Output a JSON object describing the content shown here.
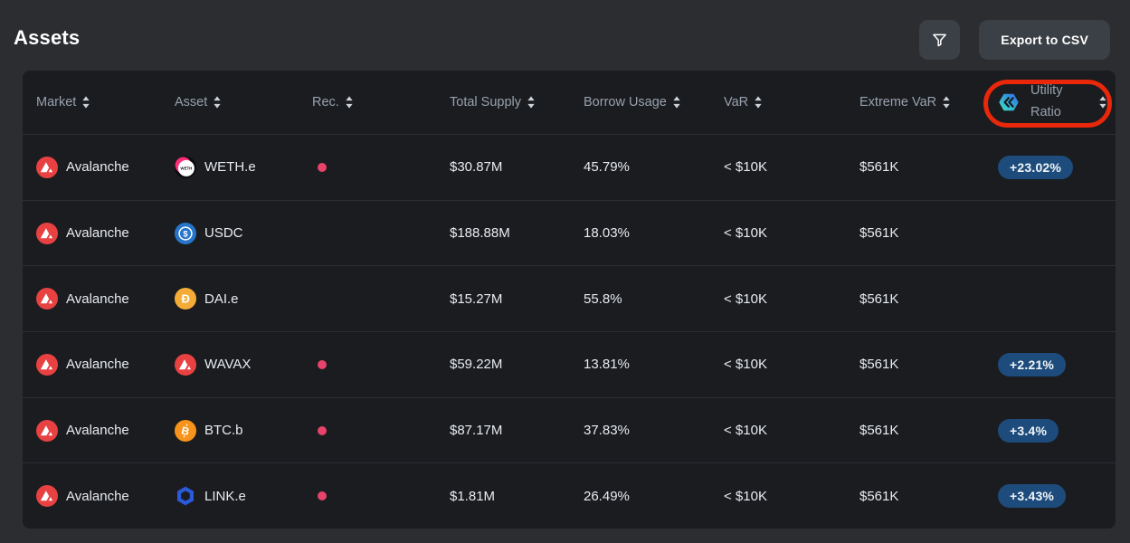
{
  "page": {
    "title": "Assets"
  },
  "toolbar": {
    "export_label": "Export to CSV",
    "filter_icon": "funnel-icon"
  },
  "colors": {
    "page_bg": "#2b2d31",
    "panel_bg": "#1a1c20",
    "button_bg": "#3b4046",
    "header_text": "#98a1ad",
    "row_text": "#e8ebef",
    "badge_bg": "#1d4c7c",
    "rec_dot": "#e8436a",
    "annotation_red": "#e8270b",
    "avalanche_red": "#e84142",
    "usdc_blue": "#2775ca",
    "dai_gold": "#f5ac37",
    "btc_orange": "#f7931a",
    "link_blue": "#2a5ada",
    "chaos_gradient_start": "#3ce2c3",
    "chaos_gradient_end": "#2e6fe8"
  },
  "table": {
    "columns": [
      {
        "key": "market",
        "label": "Market",
        "sortable": true
      },
      {
        "key": "asset",
        "label": "Asset",
        "sortable": true
      },
      {
        "key": "rec",
        "label": "Rec.",
        "sortable": true
      },
      {
        "key": "total_supply",
        "label": "Total Supply",
        "sortable": true
      },
      {
        "key": "borrow_usage",
        "label": "Borrow Usage",
        "sortable": true
      },
      {
        "key": "var",
        "label": "VaR",
        "sortable": true
      },
      {
        "key": "extreme_var",
        "label": "Extreme VaR",
        "sortable": true
      },
      {
        "key": "utility_ratio",
        "label": "Utility Ratio",
        "label_line1": "Utility",
        "label_line2": "Ratio",
        "icon": "chaos-logo-icon",
        "sortable": true,
        "annotated": true
      }
    ],
    "rows": [
      {
        "market": "Avalanche",
        "market_icon": "avalanche-icon",
        "asset": "WETH.e",
        "asset_icon": "weth-icon",
        "rec_dot": true,
        "total_supply": "$30.87M",
        "borrow_usage": "45.79%",
        "var": "< $10K",
        "extreme_var": "$561K",
        "utility_ratio": "+23.02%"
      },
      {
        "market": "Avalanche",
        "market_icon": "avalanche-icon",
        "asset": "USDC",
        "asset_icon": "usdc-icon",
        "rec_dot": false,
        "total_supply": "$188.88M",
        "borrow_usage": "18.03%",
        "var": "< $10K",
        "extreme_var": "$561K",
        "utility_ratio": null
      },
      {
        "market": "Avalanche",
        "market_icon": "avalanche-icon",
        "asset": "DAI.e",
        "asset_icon": "dai-icon",
        "rec_dot": false,
        "total_supply": "$15.27M",
        "borrow_usage": "55.8%",
        "var": "< $10K",
        "extreme_var": "$561K",
        "utility_ratio": null
      },
      {
        "market": "Avalanche",
        "market_icon": "avalanche-icon",
        "asset": "WAVAX",
        "asset_icon": "avalanche-icon",
        "rec_dot": true,
        "total_supply": "$59.22M",
        "borrow_usage": "13.81%",
        "var": "< $10K",
        "extreme_var": "$561K",
        "utility_ratio": "+2.21%"
      },
      {
        "market": "Avalanche",
        "market_icon": "avalanche-icon",
        "asset": "BTC.b",
        "asset_icon": "btc-icon",
        "rec_dot": true,
        "total_supply": "$87.17M",
        "borrow_usage": "37.83%",
        "var": "< $10K",
        "extreme_var": "$561K",
        "utility_ratio": "+3.4%"
      },
      {
        "market": "Avalanche",
        "market_icon": "avalanche-icon",
        "asset": "LINK.e",
        "asset_icon": "link-icon",
        "rec_dot": true,
        "total_supply": "$1.81M",
        "borrow_usage": "26.49%",
        "var": "< $10K",
        "extreme_var": "$561K",
        "utility_ratio": "+3.43%"
      }
    ]
  }
}
